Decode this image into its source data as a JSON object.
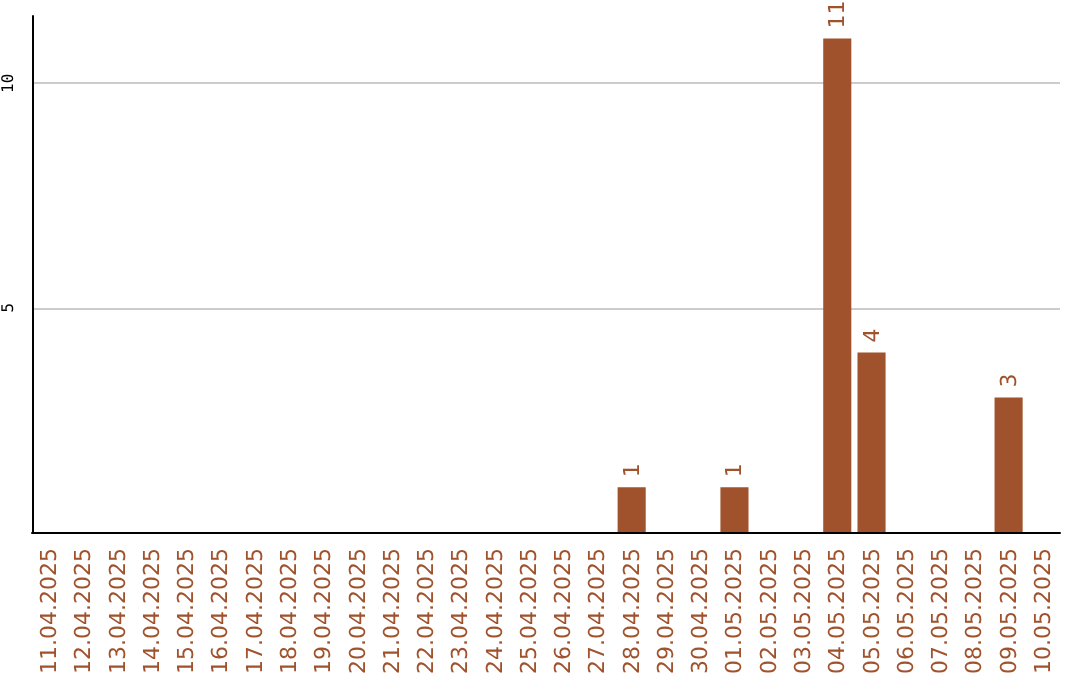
{
  "chart_data": {
    "type": "bar",
    "categories": [
      "11.04.2025",
      "12.04.2025",
      "13.04.2025",
      "14.04.2025",
      "15.04.2025",
      "16.04.2025",
      "17.04.2025",
      "18.04.2025",
      "19.04.2025",
      "20.04.2025",
      "21.04.2025",
      "22.04.2025",
      "23.04.2025",
      "24.04.2025",
      "25.04.2025",
      "26.04.2025",
      "27.04.2025",
      "28.04.2025",
      "29.04.2025",
      "30.04.2025",
      "01.05.2025",
      "02.05.2025",
      "03.05.2025",
      "04.05.2025",
      "05.05.2025",
      "06.05.2025",
      "07.05.2025",
      "08.05.2025",
      "09.05.2025",
      "10.05.2025"
    ],
    "values": [
      0,
      0,
      0,
      0,
      0,
      0,
      0,
      0,
      0,
      0,
      0,
      0,
      0,
      0,
      0,
      0,
      0,
      1,
      0,
      0,
      1,
      0,
      0,
      11,
      4,
      0,
      0,
      0,
      3,
      0
    ],
    "value_labels": [
      null,
      null,
      null,
      null,
      null,
      null,
      null,
      null,
      null,
      null,
      null,
      null,
      null,
      null,
      null,
      null,
      null,
      "1",
      null,
      null,
      "1",
      null,
      null,
      "11",
      "4",
      null,
      null,
      null,
      "3",
      null
    ],
    "color": "#a0522d",
    "ylim": [
      0,
      11.5
    ],
    "yticks": [
      5,
      10
    ],
    "grid": "y"
  }
}
